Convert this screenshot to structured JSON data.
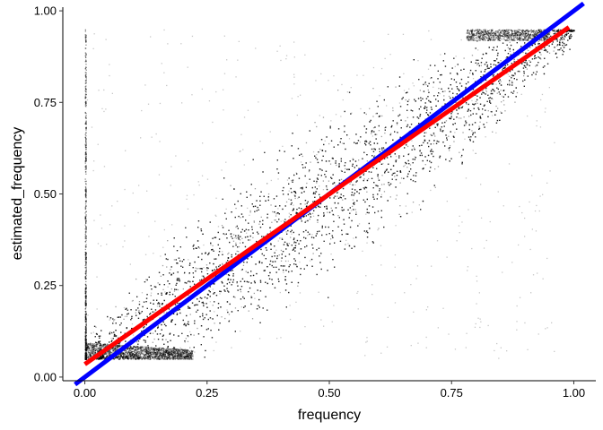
{
  "chart_data": {
    "type": "scatter",
    "title": "",
    "xlabel": "frequency",
    "ylabel": "estimated_frequency",
    "xlim": [
      -0.045,
      1.045
    ],
    "ylim": [
      -0.01,
      1.01
    ],
    "x_ticks": [
      0.0,
      0.25,
      0.5,
      0.75,
      1.0
    ],
    "x_tick_labels": [
      "0.00",
      "0.25",
      "0.50",
      "0.75",
      "1.00"
    ],
    "y_ticks": [
      0.0,
      0.25,
      0.5,
      0.75,
      1.0
    ],
    "y_tick_labels": [
      "0.00",
      "0.25",
      "0.50",
      "0.75",
      "1.00"
    ],
    "grid": false,
    "legend": "none",
    "point_color": "#000000",
    "points_description_range": {
      "x": [
        0.0,
        1.0
      ],
      "y": [
        0.05,
        0.95
      ]
    },
    "lines": [
      {
        "color": "#0000ff",
        "x": [
          -0.02,
          1.02
        ],
        "y": [
          -0.02,
          1.02
        ]
      },
      {
        "color": "#ff0000",
        "x": [
          0.0,
          0.99
        ],
        "y": [
          0.035,
          0.955
        ]
      }
    ]
  }
}
